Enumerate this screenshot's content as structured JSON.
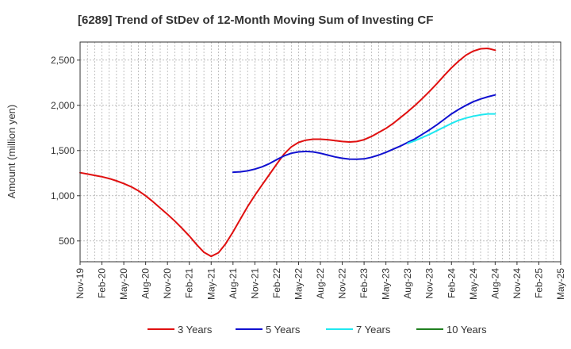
{
  "chart_data": {
    "type": "line",
    "title": "[6289]  Trend of StDev of 12-Month Moving Sum of Investing CF",
    "ylabel": "Amount (million yen)",
    "xlabel": "",
    "ylim": [
      270,
      2700
    ],
    "yticks": [
      500,
      1000,
      1500,
      2000,
      2500
    ],
    "ytick_labels": [
      "500",
      "1,000",
      "1,500",
      "2,000",
      "2,500"
    ],
    "x_start": "2019-11",
    "x_end": "2025-05",
    "xtick_labels": [
      "Nov-19",
      "Feb-20",
      "May-20",
      "Aug-20",
      "Nov-20",
      "Feb-21",
      "May-21",
      "Aug-21",
      "Nov-21",
      "Feb-22",
      "May-22",
      "Aug-22",
      "Nov-22",
      "Feb-23",
      "May-23",
      "Aug-23",
      "Nov-23",
      "Feb-24",
      "May-24",
      "Aug-24",
      "Nov-24",
      "Feb-25",
      "May-25"
    ],
    "grid": true,
    "legend_position": "bottom",
    "series": [
      {
        "name": "3 Years",
        "color": "#e01010",
        "x": [
          "2019-11",
          "2019-12",
          "2020-01",
          "2020-02",
          "2020-03",
          "2020-04",
          "2020-05",
          "2020-06",
          "2020-07",
          "2020-08",
          "2020-09",
          "2020-10",
          "2020-11",
          "2020-12",
          "2021-01",
          "2021-02",
          "2021-03",
          "2021-04",
          "2021-05",
          "2021-06",
          "2021-07",
          "2021-08",
          "2021-09",
          "2021-10",
          "2021-11",
          "2021-12",
          "2022-01",
          "2022-02",
          "2022-03",
          "2022-04",
          "2022-05",
          "2022-06",
          "2022-07",
          "2022-08",
          "2022-09",
          "2022-10",
          "2022-11",
          "2022-12",
          "2023-01",
          "2023-02",
          "2023-03",
          "2023-04",
          "2023-05",
          "2023-06",
          "2023-07",
          "2023-08",
          "2023-09",
          "2023-10",
          "2023-11",
          "2023-12",
          "2024-01",
          "2024-02",
          "2024-03",
          "2024-04",
          "2024-05",
          "2024-06",
          "2024-07",
          "2024-08"
        ],
        "values": [
          1255,
          1240,
          1225,
          1210,
          1190,
          1165,
          1135,
          1100,
          1055,
          1000,
          935,
          865,
          795,
          720,
          640,
          555,
          460,
          375,
          330,
          370,
          470,
          600,
          740,
          880,
          1005,
          1120,
          1235,
          1350,
          1460,
          1540,
          1590,
          1615,
          1625,
          1625,
          1620,
          1610,
          1600,
          1595,
          1600,
          1620,
          1655,
          1700,
          1745,
          1800,
          1865,
          1930,
          2000,
          2075,
          2155,
          2240,
          2330,
          2415,
          2490,
          2555,
          2600,
          2625,
          2630,
          2610
        ]
      },
      {
        "name": "5 Years",
        "color": "#1010d0",
        "x": [
          "2021-08",
          "2021-09",
          "2021-10",
          "2021-11",
          "2021-12",
          "2022-01",
          "2022-02",
          "2022-03",
          "2022-04",
          "2022-05",
          "2022-06",
          "2022-07",
          "2022-08",
          "2022-09",
          "2022-10",
          "2022-11",
          "2022-12",
          "2023-01",
          "2023-02",
          "2023-03",
          "2023-04",
          "2023-05",
          "2023-06",
          "2023-07",
          "2023-08",
          "2023-09",
          "2023-10",
          "2023-11",
          "2023-12",
          "2024-01",
          "2024-02",
          "2024-03",
          "2024-04",
          "2024-05",
          "2024-06",
          "2024-07",
          "2024-08"
        ],
        "values": [
          1260,
          1265,
          1275,
          1295,
          1320,
          1355,
          1400,
          1440,
          1470,
          1485,
          1490,
          1485,
          1470,
          1450,
          1430,
          1415,
          1405,
          1403,
          1408,
          1425,
          1450,
          1480,
          1515,
          1550,
          1590,
          1630,
          1680,
          1730,
          1785,
          1845,
          1905,
          1955,
          2000,
          2040,
          2070,
          2095,
          2115
        ]
      },
      {
        "name": "7 Years",
        "color": "#20e8f0",
        "x": [
          "2023-08",
          "2023-09",
          "2023-10",
          "2023-11",
          "2023-12",
          "2024-01",
          "2024-02",
          "2024-03",
          "2024-04",
          "2024-05",
          "2024-06",
          "2024-07",
          "2024-08"
        ],
        "values": [
          1580,
          1610,
          1645,
          1680,
          1720,
          1760,
          1800,
          1835,
          1860,
          1880,
          1895,
          1905,
          1905
        ]
      },
      {
        "name": "10 Years",
        "color": "#208020",
        "x": [],
        "values": []
      }
    ]
  }
}
